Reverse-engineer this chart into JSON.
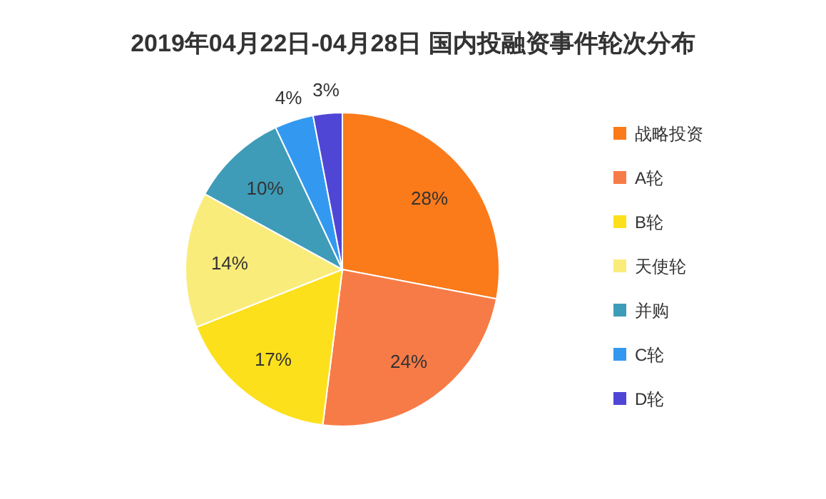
{
  "chart_data": {
    "type": "pie",
    "title": "2019年04月22日-04月28日 国内投融资事件轮次分布",
    "categories": [
      "战略投资",
      "A轮",
      "B轮",
      "天使轮",
      "并购",
      "C轮",
      "D轮"
    ],
    "values": [
      28,
      24,
      17,
      14,
      10,
      4,
      3
    ],
    "value_labels": [
      "28%",
      "24%",
      "17%",
      "14%",
      "10%",
      "4%",
      "3%"
    ],
    "colors": [
      "#fb7a1a",
      "#f77b47",
      "#fce01c",
      "#faec7a",
      "#3e9cb8",
      "#3399f0",
      "#5046d6"
    ],
    "legend": "right"
  }
}
